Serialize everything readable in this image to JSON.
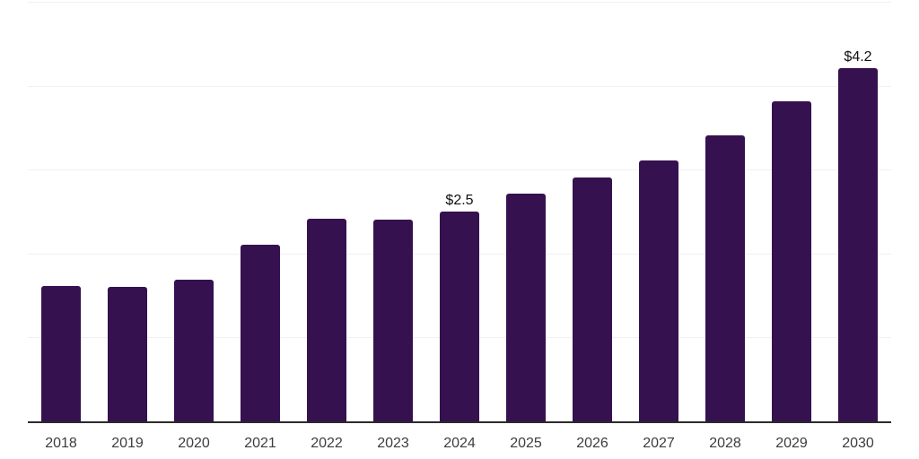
{
  "chart_data": {
    "type": "bar",
    "title": "",
    "xlabel": "",
    "ylabel": "",
    "categories": [
      "2018",
      "2019",
      "2020",
      "2021",
      "2022",
      "2023",
      "2024",
      "2025",
      "2026",
      "2027",
      "2028",
      "2029",
      "2030"
    ],
    "values": [
      1.61,
      1.6,
      1.69,
      2.11,
      2.41,
      2.4,
      2.5,
      2.71,
      2.91,
      3.11,
      3.41,
      3.81,
      4.21
    ],
    "point_labels": [
      "",
      "",
      "",
      "",
      "",
      "",
      "$2.5",
      "",
      "",
      "",
      "",
      "",
      "$4.2"
    ],
    "ylim": [
      0,
      5
    ],
    "gridline_values": [
      1,
      2,
      3,
      4,
      5
    ],
    "grid": "horizontal",
    "legend_position": "none",
    "colors": {
      "bar": "#36114f",
      "gridline": "#f1f1f1",
      "axis_line": "#2b2b2b",
      "tick_label": "#3d3d3d",
      "value_label": "#101010",
      "background": "#ffffff"
    }
  }
}
